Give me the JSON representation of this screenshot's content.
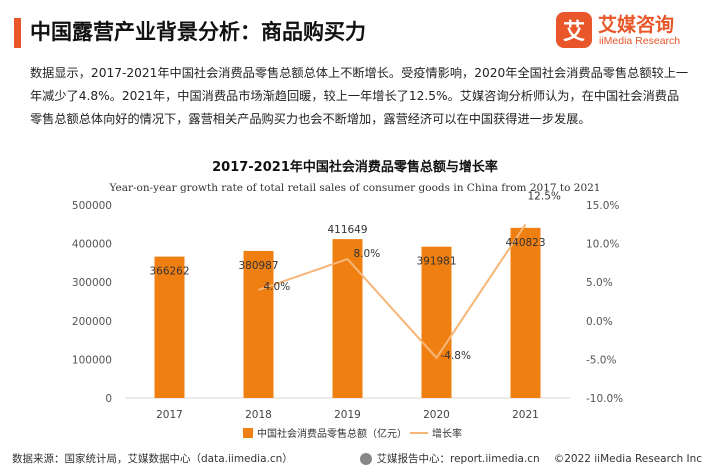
{
  "header": {
    "title": "中国露营产业背景分析：商品购买力",
    "accent_color": "#e8562a"
  },
  "logo": {
    "mark": "艾",
    "name_cn": "艾媒咨询",
    "name_en": "iiMedia Research",
    "color": "#e8562a",
    "icon": "iimedia-logo-icon"
  },
  "intro": "数据显示，2017-2021年中国社会消费品零售总额总体上不断增长。受疫情影响，2020年全国社会消费品零售总额较上一年减少了4.8%。2021年，中国消费品市场渐趋回暖，较上一年增长了12.5%。艾媒咨询分析师认为，在中国社会消费品零售总额总体向好的情况下，露营相关产品购买力也会不断增加，露营经济可以在中国获得进一步发展。",
  "chart_data": {
    "type": "bar",
    "title": "2017-2021年中国社会消费品零售总额与增长率",
    "subtitle": "Year-on-year growth rate of total retail sales of consumer goods in China from 2017 to 2021",
    "categories": [
      "2017",
      "2018",
      "2019",
      "2020",
      "2021"
    ],
    "series": [
      {
        "name": "中国社会消费品零售总额（亿元）",
        "type": "bar",
        "axis": "left",
        "values": [
          366262,
          380987,
          411649,
          391981,
          440823
        ],
        "labels": [
          "366262",
          "380987",
          "411649",
          "391981",
          "440823"
        ],
        "color": "#f07f12"
      },
      {
        "name": "增长率",
        "type": "line",
        "axis": "right",
        "values": [
          null,
          4.0,
          8.0,
          -4.8,
          12.5
        ],
        "labels": [
          "",
          "4.0%",
          "8.0%",
          "-4.8%",
          "12.5%"
        ],
        "color": "#f7b677"
      }
    ],
    "y_left": {
      "lim": [
        0,
        500000
      ],
      "ticks": [
        0,
        100000,
        200000,
        300000,
        400000,
        500000
      ],
      "tick_labels": [
        "0",
        "100000",
        "200000",
        "300000",
        "400000",
        "500000"
      ]
    },
    "y_right": {
      "lim": [
        -10,
        15
      ],
      "ticks": [
        -10,
        -5,
        0,
        5,
        10,
        15
      ],
      "tick_labels": [
        "-10.0%",
        "-5.0%",
        "0.0%",
        "5.0%",
        "10.0%",
        "15.0%"
      ]
    },
    "grid": false,
    "legend": "bottom"
  },
  "footer": {
    "source": "数据来源：国家统计局，艾媒数据中心（data.iimedia.cn）",
    "report_site": "艾媒报告中心：report.iimedia.cn",
    "copyright": "©2022  iiMedia Research  Inc"
  }
}
